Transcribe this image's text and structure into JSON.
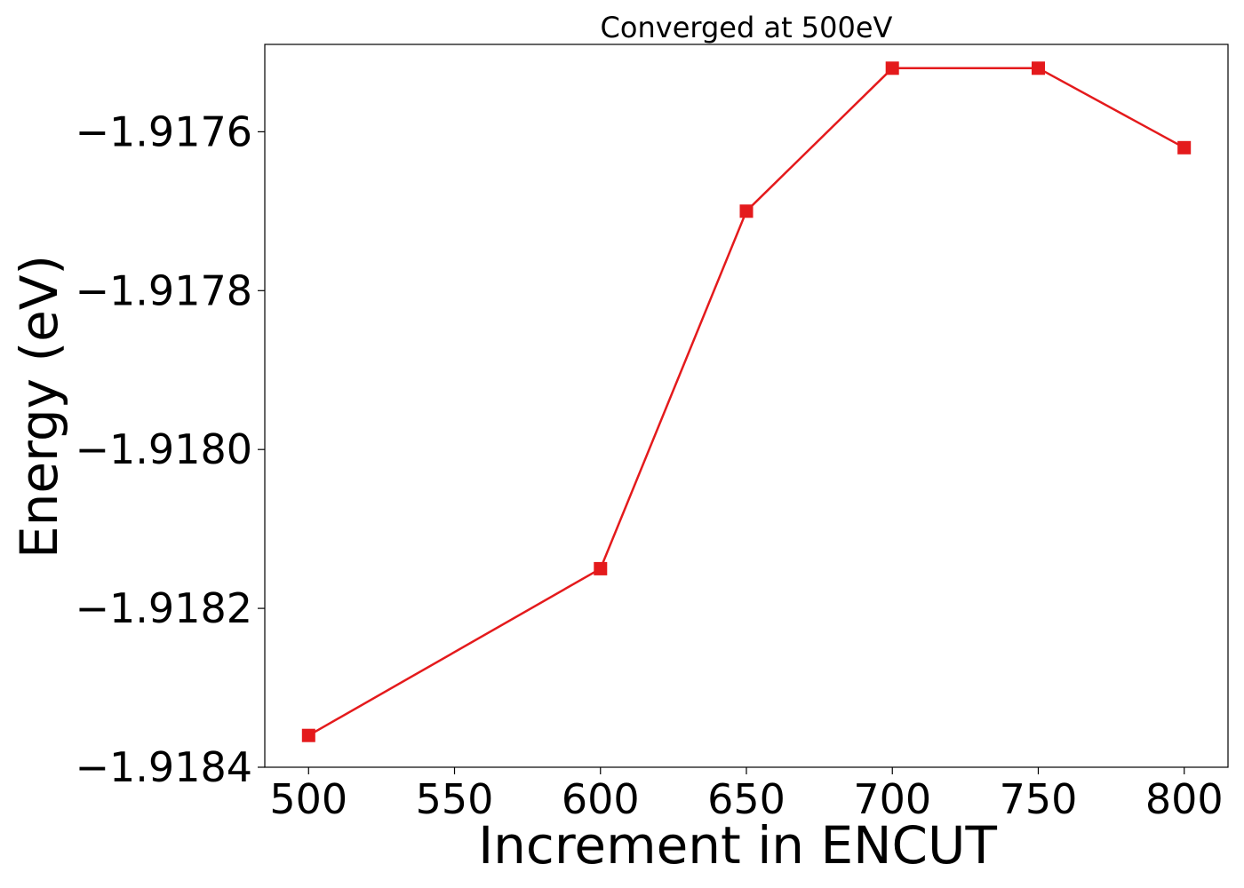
{
  "chart_data": {
    "type": "line",
    "title": "Converged at 500eV",
    "xlabel": "Increment in ENCUT",
    "ylabel": "Energy (eV)",
    "xlim": [
      485,
      815
    ],
    "ylim": [
      -1.9184,
      -1.91749
    ],
    "x_ticks": [
      500,
      550,
      600,
      650,
      700,
      750,
      800
    ],
    "x_tick_labels": [
      "500",
      "550",
      "600",
      "650",
      "700",
      "750",
      "800"
    ],
    "y_ticks": [
      -1.9184,
      -1.9182,
      -1.918,
      -1.9178,
      -1.9176
    ],
    "y_tick_labels": [
      "−1.9184",
      "−1.9182",
      "−1.9180",
      "−1.9178",
      "−1.9176"
    ],
    "grid": false,
    "legend": "none",
    "series": [
      {
        "marker": "square",
        "color": "#e41a1c",
        "x": [
          500,
          600,
          650,
          700,
          750,
          800
        ],
        "y": [
          -1.91836,
          -1.91815,
          -1.9177,
          -1.91752,
          -1.91752,
          -1.91762
        ]
      }
    ]
  }
}
